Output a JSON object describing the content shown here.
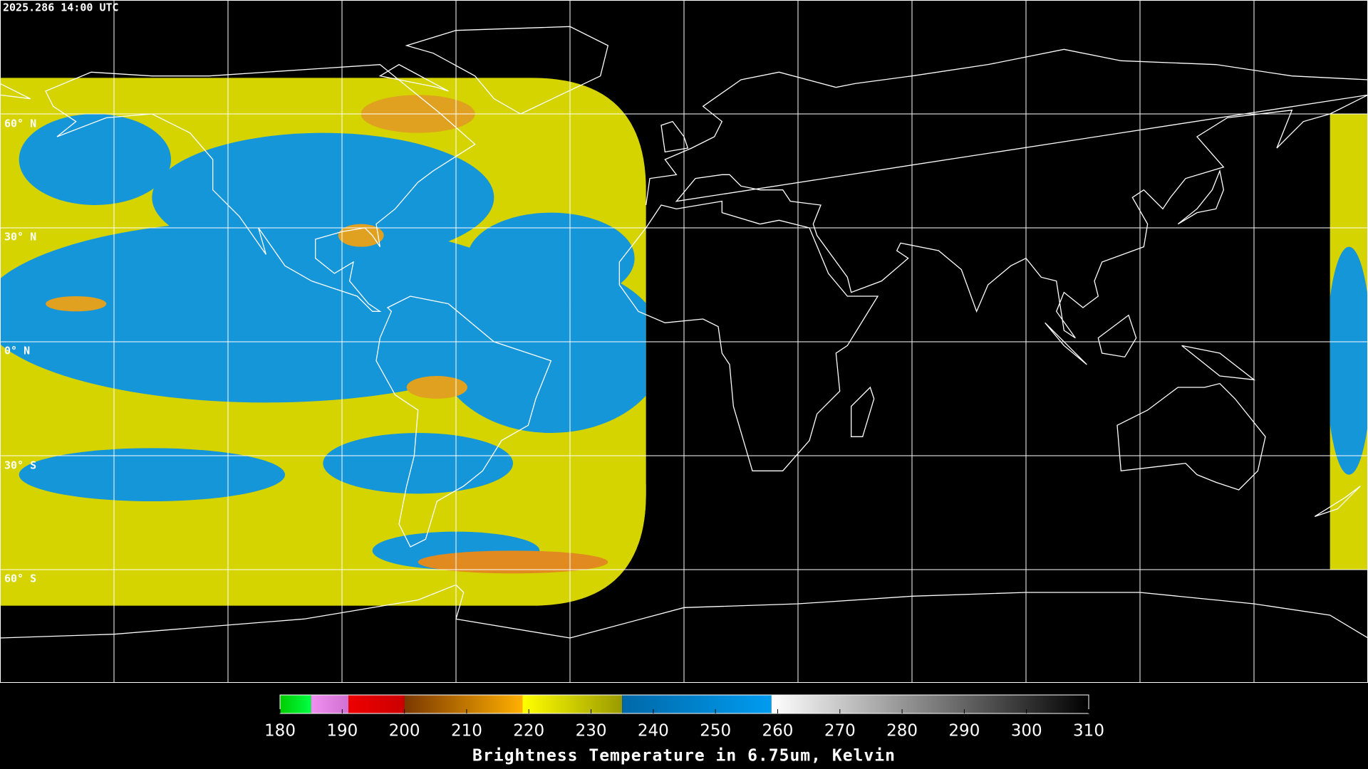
{
  "timestamp": "2025.286 14:00 UTC",
  "latitude_labels": [
    "60° N",
    "30° N",
    "0° N",
    "30° S",
    "60° S"
  ],
  "colorbar": {
    "title": "Brightness Temperature in 6.75um, Kelvin",
    "range": [
      180,
      310
    ],
    "ticks": [
      180,
      190,
      200,
      210,
      220,
      230,
      240,
      250,
      260,
      270,
      280,
      290,
      300,
      310
    ],
    "segments": [
      {
        "from": 180,
        "to": 185,
        "colors": [
          "#00cc00",
          "#00ff44"
        ]
      },
      {
        "from": 185,
        "to": 191,
        "colors": [
          "#f090f0",
          "#d070d0"
        ]
      },
      {
        "from": 191,
        "to": 200,
        "colors": [
          "#ee0000",
          "#cc0000"
        ]
      },
      {
        "from": 200,
        "to": 219,
        "colors": [
          "#7a3800",
          "#ffb000"
        ]
      },
      {
        "from": 219,
        "to": 235,
        "colors": [
          "#ffff00",
          "#9a9a00"
        ]
      },
      {
        "from": 235,
        "to": 259,
        "colors": [
          "#0068a8",
          "#009cf0"
        ]
      },
      {
        "from": 259,
        "to": 310,
        "colors": [
          "#ffffff",
          "#000000"
        ]
      }
    ]
  }
}
